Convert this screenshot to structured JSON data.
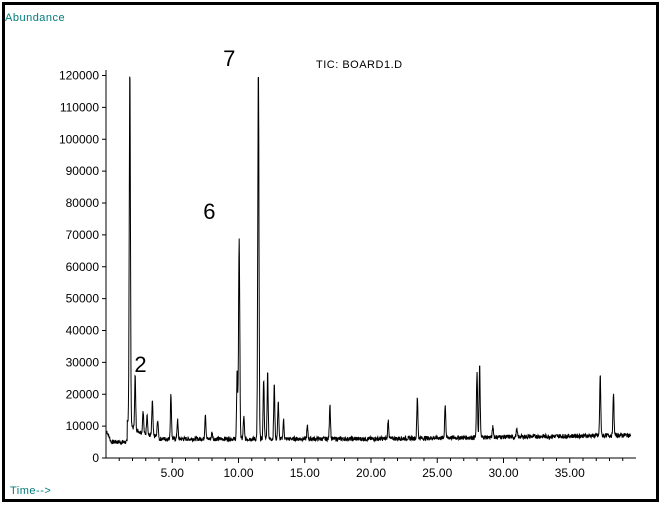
{
  "chart_data": {
    "type": "line",
    "title": "TIC: BOARD1.D",
    "ylabel": "Abundance",
    "xlabel": "Time-->",
    "xlim": [
      0,
      40
    ],
    "ylim": [
      0,
      125000
    ],
    "x_ticks": [
      {
        "value": 5,
        "label": "5.00"
      },
      {
        "value": 10,
        "label": "10.00"
      },
      {
        "value": 15,
        "label": "15.00"
      },
      {
        "value": 20,
        "label": "20.00"
      },
      {
        "value": 25,
        "label": "25.00"
      },
      {
        "value": 30,
        "label": "30.00"
      },
      {
        "value": 35,
        "label": "35.00"
      }
    ],
    "y_ticks": [
      {
        "value": 0,
        "label": "0"
      },
      {
        "value": 10000,
        "label": "10000"
      },
      {
        "value": 20000,
        "label": "20000"
      },
      {
        "value": 30000,
        "label": "30000"
      },
      {
        "value": 40000,
        "label": "40000"
      },
      {
        "value": 50000,
        "label": "50000"
      },
      {
        "value": 60000,
        "label": "60000"
      },
      {
        "value": 70000,
        "label": "70000"
      },
      {
        "value": 80000,
        "label": "80000"
      },
      {
        "value": 90000,
        "label": "90000"
      },
      {
        "value": 100000,
        "label": "100000"
      },
      {
        "value": 110000,
        "label": "110000"
      },
      {
        "value": 120000,
        "label": "120000"
      }
    ],
    "annotations": [
      {
        "text": "2",
        "x": 2.6,
        "y": 27000
      },
      {
        "text": "6",
        "x": 7.8,
        "y": 75000
      },
      {
        "text": "7",
        "x": 9.3,
        "y": 123000
      }
    ],
    "series": [
      {
        "line_color": "#000000",
        "baseline": 6000,
        "peaks": [
          {
            "x": 1.8,
            "y": 122000
          },
          {
            "x": 2.2,
            "y": 26000
          },
          {
            "x": 2.8,
            "y": 15000
          },
          {
            "x": 3.1,
            "y": 14000
          },
          {
            "x": 3.5,
            "y": 18000
          },
          {
            "x": 3.9,
            "y": 12000
          },
          {
            "x": 4.9,
            "y": 20000
          },
          {
            "x": 5.4,
            "y": 12000
          },
          {
            "x": 7.5,
            "y": 14000
          },
          {
            "x": 8.0,
            "y": 8000
          },
          {
            "x": 9.9,
            "y": 27000
          },
          {
            "x": 10.05,
            "y": 69000
          },
          {
            "x": 10.4,
            "y": 13000
          },
          {
            "x": 11.5,
            "y": 122000
          },
          {
            "x": 11.9,
            "y": 25000
          },
          {
            "x": 12.2,
            "y": 27000
          },
          {
            "x": 12.7,
            "y": 23000
          },
          {
            "x": 13.0,
            "y": 18000
          },
          {
            "x": 13.4,
            "y": 12000
          },
          {
            "x": 15.2,
            "y": 10000
          },
          {
            "x": 16.9,
            "y": 17000
          },
          {
            "x": 21.3,
            "y": 12000
          },
          {
            "x": 23.5,
            "y": 19000
          },
          {
            "x": 25.6,
            "y": 17000
          },
          {
            "x": 28.0,
            "y": 27000
          },
          {
            "x": 28.2,
            "y": 29000
          },
          {
            "x": 29.2,
            "y": 10000
          },
          {
            "x": 31.0,
            "y": 9000
          },
          {
            "x": 37.3,
            "y": 26000
          },
          {
            "x": 38.3,
            "y": 20000
          }
        ]
      }
    ]
  }
}
